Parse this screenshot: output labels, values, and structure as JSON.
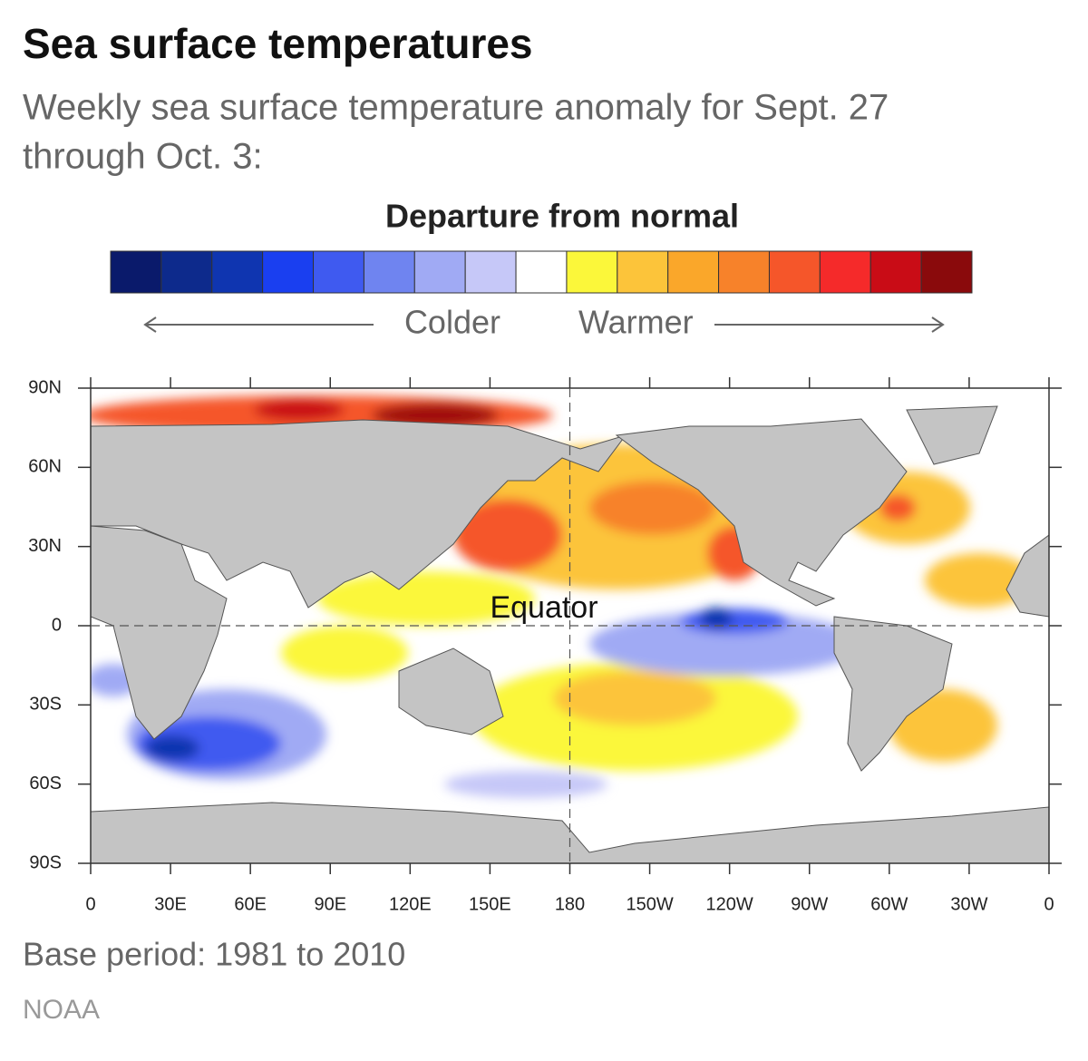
{
  "header": {
    "title": "Sea surface temperatures",
    "subtitle_line1": "Weekly sea surface temperature anomaly for Sept. 27",
    "subtitle_line2": "through Oct. 3:"
  },
  "legend": {
    "title": "Departure from normal",
    "colder": "Colder",
    "warmer": "Warmer",
    "colors": [
      "#0a1a6b",
      "#0d2a8c",
      "#0f35b0",
      "#1a3ff0",
      "#3f5af0",
      "#6f84f0",
      "#a0aaf4",
      "#c6c8f8",
      "#ffffff",
      "#fbf73a",
      "#fcc43a",
      "#faa72a",
      "#f7822a",
      "#f5562a",
      "#f52a2a",
      "#c90c16",
      "#8a0a0c"
    ]
  },
  "map": {
    "annotation": "Equator",
    "lonlim": [
      0,
      360
    ],
    "latlim": [
      -90,
      90
    ],
    "lonticks": [
      0,
      {
        "value": 30,
        "label": "30E"
      },
      {
        "value": 60,
        "label": "60E"
      },
      {
        "value": 90,
        "label": "90E"
      },
      {
        "value": 120,
        "label": "120E"
      },
      {
        "value": 150,
        "label": "150E"
      },
      180,
      {
        "value": 210,
        "label": "150W"
      },
      {
        "value": 240,
        "label": "120W"
      },
      {
        "value": 270,
        "label": "90W"
      },
      {
        "value": 300,
        "label": "60W"
      },
      {
        "value": 330,
        "label": "30W"
      },
      {
        "value": 360,
        "label": "0"
      }
    ],
    "latticks": [
      {
        "value": 90,
        "label": "90N"
      },
      {
        "value": 60,
        "label": "60N"
      },
      {
        "value": 30,
        "label": "30N"
      },
      0,
      {
        "value": -30,
        "label": "30S"
      },
      {
        "value": -60,
        "label": "60S"
      },
      {
        "value": -90,
        "label": "90S"
      }
    ]
  },
  "footer": {
    "note": "Base period: 1981 to 2010",
    "source": "NOAA"
  }
}
